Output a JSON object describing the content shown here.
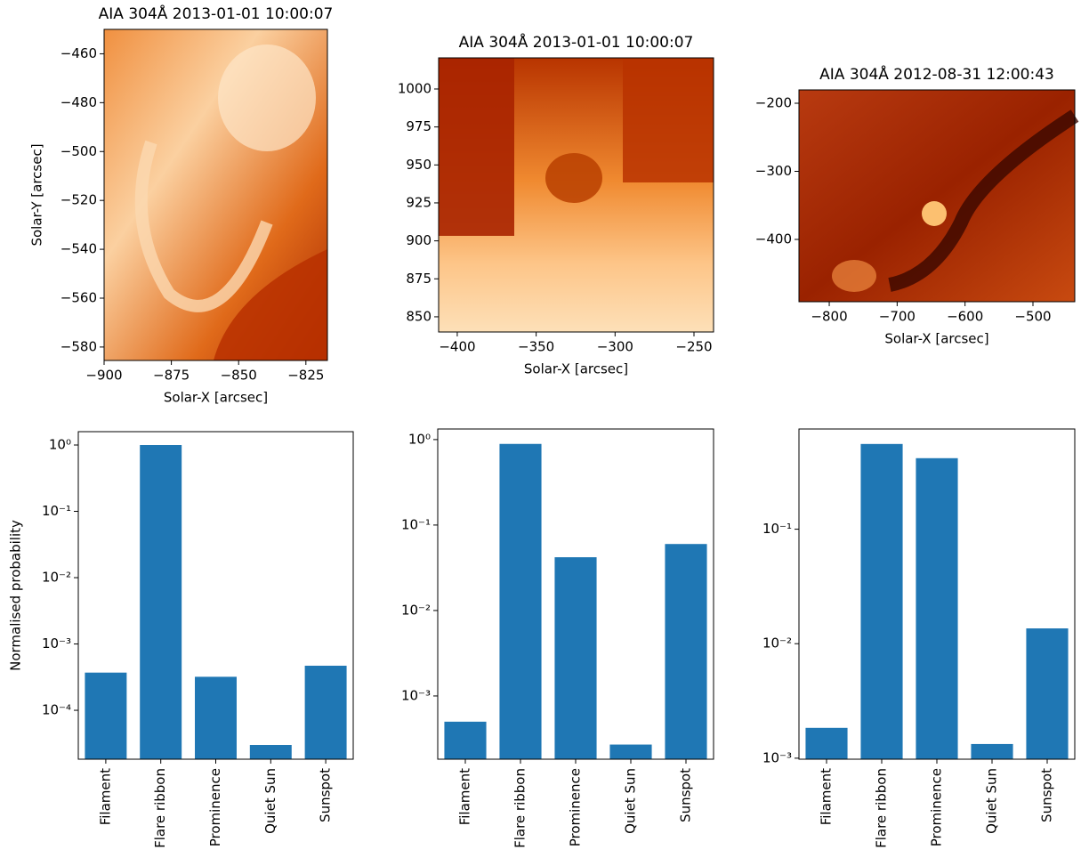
{
  "chart_data": [
    {
      "type": "image",
      "title": "AIA 304Å 2013-01-01 10:00:07",
      "xlabel": "Solar-X [arcsec]",
      "ylabel": "Solar-Y [arcsec]",
      "xlim": [
        -900,
        -817
      ],
      "ylim": [
        -585.5,
        -450
      ],
      "xticks": [
        {
          "value": -900,
          "label": "−900"
        },
        {
          "value": -875,
          "label": "−875"
        },
        {
          "value": -850,
          "label": "−850"
        },
        {
          "value": -825,
          "label": "−825"
        }
      ],
      "yticks": [
        {
          "value": -580,
          "label": "−580"
        },
        {
          "value": -560,
          "label": "−560"
        },
        {
          "value": -540,
          "label": "−540"
        },
        {
          "value": -520,
          "label": "−520"
        },
        {
          "value": -500,
          "label": "−500"
        },
        {
          "value": -480,
          "label": "−480"
        },
        {
          "value": -460,
          "label": "−460"
        }
      ]
    },
    {
      "type": "image",
      "title": "AIA 304Å 2013-01-01 10:00:07",
      "xlabel": "Solar-X [arcsec]",
      "xlim": [
        -411.8,
        -237.6
      ],
      "ylim": [
        840,
        1020.5
      ],
      "xticks": [
        {
          "value": -400,
          "label": "−400"
        },
        {
          "value": -350,
          "label": "−350"
        },
        {
          "value": -300,
          "label": "−300"
        },
        {
          "value": -250,
          "label": "−250"
        }
      ],
      "yticks": [
        850,
        875,
        900,
        925,
        950,
        975,
        1000
      ]
    },
    {
      "type": "image",
      "title": "AIA 304Å 2012-08-31 12:00:43",
      "xlabel": "Solar-X [arcsec]",
      "xlim": [
        -844.6,
        -438.4
      ],
      "ylim": [
        -491.5,
        -180.4
      ],
      "xticks": [
        {
          "value": -800,
          "label": "−800"
        },
        {
          "value": -700,
          "label": "−700"
        },
        {
          "value": -600,
          "label": "−600"
        },
        {
          "value": -500,
          "label": "−500"
        }
      ],
      "yticks": [
        {
          "value": -400,
          "label": "−400"
        },
        {
          "value": -300,
          "label": "−300"
        },
        {
          "value": -200,
          "label": "−200"
        }
      ]
    },
    {
      "type": "bar",
      "ylabel": "Normalised probability",
      "log_y": true,
      "color": "#1f77b4",
      "categories": [
        "Filament",
        "Flare ribbon",
        "Prominence",
        "Quiet Sun",
        "Sunspot"
      ],
      "values": [
        0.00037,
        1.0,
        0.00032,
        3e-05,
        0.00047
      ],
      "ylim": [
        1.83e-05,
        1.59
      ],
      "yticks": [
        {
          "value": 0.0001,
          "label": "10⁻⁴"
        },
        {
          "value": 0.001,
          "label": "10⁻³"
        },
        {
          "value": 0.01,
          "label": "10⁻²"
        },
        {
          "value": 0.1,
          "label": "10⁻¹"
        },
        {
          "value": 1,
          "label": "10⁰"
        }
      ]
    },
    {
      "type": "bar",
      "log_y": true,
      "color": "#1f77b4",
      "categories": [
        "Filament",
        "Flare ribbon",
        "Prominence",
        "Quiet Sun",
        "Sunspot"
      ],
      "values": [
        0.0005,
        0.89,
        0.042,
        0.00027,
        0.06
      ],
      "ylim": [
        0.000182,
        1.33
      ],
      "yticks": [
        {
          "value": 0.001,
          "label": "10⁻³"
        },
        {
          "value": 0.01,
          "label": "10⁻²"
        },
        {
          "value": 0.1,
          "label": "10⁻¹"
        },
        {
          "value": 1,
          "label": "10⁰"
        }
      ]
    },
    {
      "type": "bar",
      "log_y": true,
      "color": "#1f77b4",
      "categories": [
        "Filament",
        "Flare ribbon",
        "Prominence",
        "Quiet Sun",
        "Sunspot"
      ],
      "values": [
        0.00184,
        0.555,
        0.417,
        0.00133,
        0.0136
      ],
      "ylim": [
        0.00098,
        0.75
      ],
      "yticks": [
        {
          "value": 0.001,
          "label": "10⁻³"
        },
        {
          "value": 0.01,
          "label": "10⁻²"
        },
        {
          "value": 0.1,
          "label": "10⁻¹"
        }
      ]
    }
  ]
}
